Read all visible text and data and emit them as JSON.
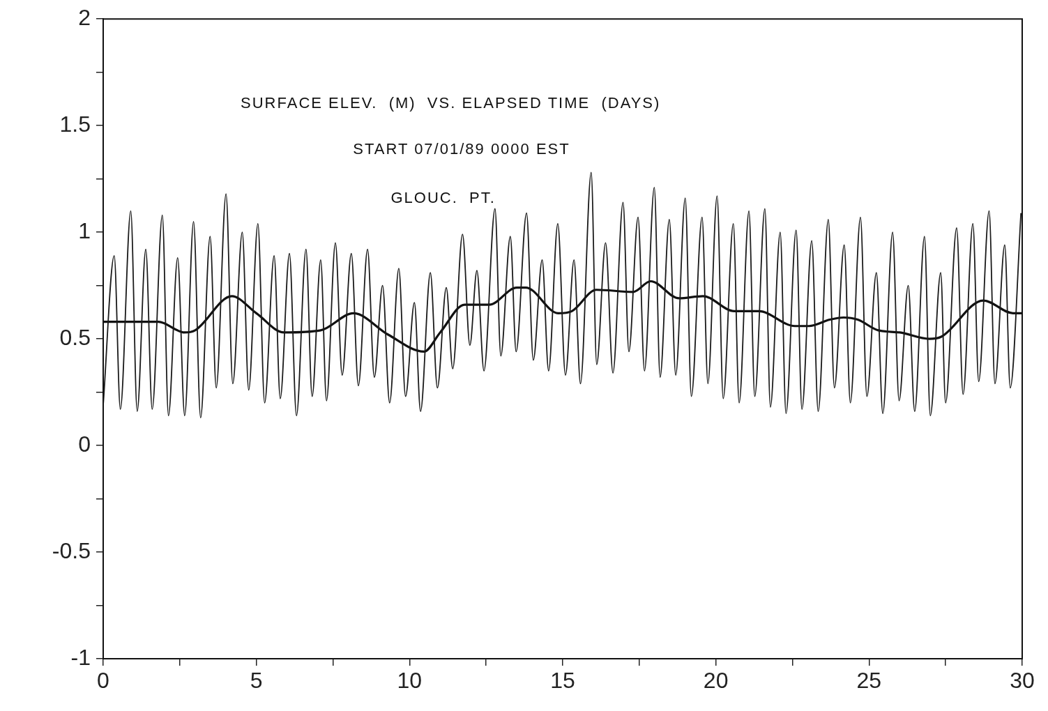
{
  "chart_data": {
    "type": "line",
    "title": "SURFACE ELEV.  (M)  VS. ELAPSED TIME  (DAYS)",
    "subtitle": "START 07/01/89 0000 EST",
    "annotations": [
      "GLOUC.  PT."
    ],
    "xlim": [
      0,
      30
    ],
    "ylim": [
      -1,
      2
    ],
    "xticks": [
      0,
      {
        "value": 2.5,
        "label": null
      },
      5,
      {
        "value": 7.5,
        "label": null
      },
      10,
      {
        "value": 12.5,
        "label": null
      },
      15,
      {
        "value": 17.5,
        "label": null
      },
      20,
      {
        "value": 22.5,
        "label": null
      },
      25,
      {
        "value": 27.5,
        "label": null
      },
      30
    ],
    "yticks": [
      -1,
      {
        "value": -0.75,
        "label": null
      },
      -0.5,
      {
        "value": -0.25,
        "label": null
      },
      0,
      {
        "value": 0.25,
        "label": null
      },
      0.5,
      {
        "value": 0.75,
        "label": null
      },
      1,
      {
        "value": 1.25,
        "label": null
      },
      1.5,
      {
        "value": 1.75,
        "label": null
      },
      2
    ],
    "grid": false,
    "marker": "none",
    "line_style": "solid",
    "series": [
      {
        "color": "#1a1a1a",
        "x": [
          0,
          0.36,
          0.56,
          0.9,
          1.11,
          1.39,
          1.6,
          1.93,
          2.13,
          2.43,
          2.66,
          2.95,
          3.18,
          3.49,
          3.69,
          4.01,
          4.23,
          4.54,
          4.75,
          5.05,
          5.27,
          5.58,
          5.78,
          6.08,
          6.31,
          6.62,
          6.82,
          7.1,
          7.29,
          7.58,
          7.8,
          8.1,
          8.33,
          8.63,
          8.85,
          9.12,
          9.35,
          9.65,
          9.87,
          10.16,
          10.36,
          10.68,
          10.91,
          11.2,
          11.41,
          11.73,
          11.97,
          12.2,
          12.43,
          12.79,
          12.98,
          13.29,
          13.48,
          13.82,
          14.04,
          14.33,
          14.54,
          14.84,
          15.09,
          15.37,
          15.58,
          15.93,
          16.11,
          16.4,
          16.64,
          16.97,
          17.16,
          17.46,
          17.67,
          17.99,
          18.18,
          18.48,
          18.69,
          19,
          19.2,
          19.55,
          19.74,
          20.04,
          20.24,
          20.57,
          20.76,
          21.08,
          21.27,
          21.6,
          21.78,
          22.1,
          22.29,
          22.62,
          22.81,
          23.13,
          23.34,
          23.67,
          23.87,
          24.19,
          24.39,
          24.72,
          24.93,
          25.24,
          25.45,
          25.77,
          25.98,
          26.28,
          26.49,
          26.81,
          27,
          27.34,
          27.5,
          27.86,
          28.07,
          28.39,
          28.58,
          28.92,
          29.11,
          29.43,
          29.61,
          29.96
        ],
        "values": [
          0.19,
          0.89,
          0.17,
          1.1,
          0.16,
          0.92,
          0.17,
          1.08,
          0.14,
          0.88,
          0.14,
          1.05,
          0.13,
          0.98,
          0.27,
          1.18,
          0.29,
          1.0,
          0.26,
          1.04,
          0.2,
          0.89,
          0.22,
          0.9,
          0.14,
          0.92,
          0.23,
          0.87,
          0.21,
          0.95,
          0.33,
          0.9,
          0.28,
          0.92,
          0.32,
          0.75,
          0.2,
          0.83,
          0.23,
          0.67,
          0.16,
          0.81,
          0.27,
          0.74,
          0.36,
          0.99,
          0.47,
          0.82,
          0.35,
          1.11,
          0.42,
          0.98,
          0.44,
          1.09,
          0.4,
          0.87,
          0.35,
          1.04,
          0.33,
          0.87,
          0.29,
          1.28,
          0.38,
          0.95,
          0.34,
          1.14,
          0.44,
          1.07,
          0.35,
          1.21,
          0.32,
          1.06,
          0.33,
          1.16,
          0.23,
          1.07,
          0.29,
          1.17,
          0.22,
          1.04,
          0.2,
          1.1,
          0.23,
          1.11,
          0.18,
          1.0,
          0.15,
          1.01,
          0.17,
          0.96,
          0.16,
          1.06,
          0.27,
          0.94,
          0.2,
          1.07,
          0.23,
          0.81,
          0.15,
          1.0,
          0.21,
          0.75,
          0.16,
          0.98,
          0.14,
          0.81,
          0.2,
          1.02,
          0.24,
          1.04,
          0.3,
          1.1,
          0.29,
          0.94,
          0.27,
          1.09
        ]
      },
      {
        "color": "#111111",
        "x": [
          0,
          1.8,
          2.66,
          3.0,
          4.2,
          5.0,
          5.9,
          7.1,
          8.17,
          9.3,
          10.47,
          11.0,
          11.8,
          12.6,
          13.5,
          13.8,
          14.85,
          15.3,
          16.1,
          17.3,
          17.87,
          18.8,
          19.58,
          20.6,
          21.4,
          22.58,
          23.04,
          23.72,
          24.17,
          24.63,
          25.3,
          26.0,
          26.97,
          27.36,
          28.73,
          29.7,
          30
        ],
        "values": [
          0.58,
          0.58,
          0.53,
          0.54,
          0.7,
          0.62,
          0.53,
          0.54,
          0.62,
          0.52,
          0.44,
          0.53,
          0.66,
          0.66,
          0.74,
          0.74,
          0.62,
          0.63,
          0.73,
          0.72,
          0.77,
          0.69,
          0.7,
          0.63,
          0.63,
          0.56,
          0.56,
          0.59,
          0.6,
          0.59,
          0.54,
          0.53,
          0.5,
          0.51,
          0.68,
          0.62,
          0.62
        ]
      }
    ]
  }
}
